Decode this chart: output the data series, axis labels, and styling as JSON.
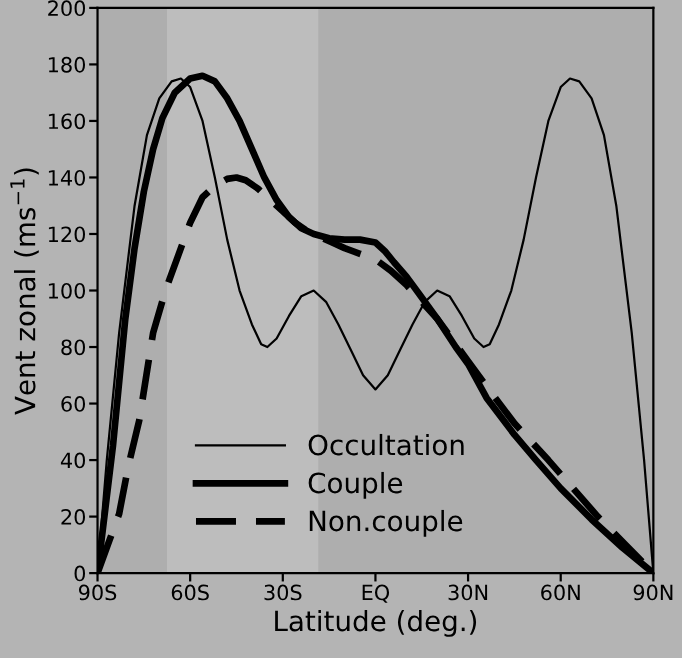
{
  "chart_data": {
    "type": "line",
    "xlabel": "Latitude (deg.)",
    "ylabel": "Vent zonal (ms$^{−1}$)",
    "xlim": [
      -90,
      90
    ],
    "xticks": [
      {
        "value": -90,
        "label": "90S"
      },
      {
        "value": -60,
        "label": "60S"
      },
      {
        "value": -30,
        "label": "30S"
      },
      {
        "value": 0,
        "label": "EQ"
      },
      {
        "value": 30,
        "label": "30N"
      },
      {
        "value": 60,
        "label": "60N"
      },
      {
        "value": 90,
        "label": "90N"
      }
    ],
    "ylim": [
      0,
      200
    ],
    "yticks": [
      0,
      20,
      40,
      60,
      80,
      100,
      120,
      140,
      160,
      180,
      200
    ],
    "grid": false,
    "legend": "bottom",
    "marker": "none",
    "bands": [
      {
        "axis": "x",
        "from": -67.5,
        "to": -18.5,
        "color": "#bdbdbd"
      }
    ],
    "series": [
      {
        "name": "Occultation",
        "color": "#000000",
        "line_style": "solid",
        "x": [
          -90,
          -87,
          -83,
          -78,
          -74,
          -70,
          -66,
          -63,
          -60,
          -56,
          -52,
          -48,
          -44,
          -40,
          -37,
          -35,
          -32,
          -28,
          -24,
          -20,
          -16,
          -12,
          -8,
          -4,
          0,
          4,
          8,
          12,
          16,
          20,
          24,
          28,
          32,
          35,
          37,
          40,
          44,
          48,
          52,
          56,
          60,
          63,
          66,
          70,
          74,
          78,
          83,
          87,
          90
        ],
        "values": [
          0,
          40,
          85,
          130,
          155,
          168,
          174,
          175,
          172,
          160,
          140,
          118,
          100,
          88,
          81,
          80,
          83,
          91,
          98,
          100,
          96,
          88,
          79,
          70,
          65,
          70,
          79,
          88,
          96,
          100,
          98,
          91,
          83,
          80,
          81,
          88,
          100,
          118,
          140,
          160,
          172,
          175,
          174,
          168,
          155,
          130,
          85,
          40,
          0
        ]
      },
      {
        "name": "Couple",
        "color": "#000000",
        "line_style": "solid",
        "x": [
          -90,
          -85,
          -81,
          -78,
          -75,
          -72,
          -69,
          -65,
          -60,
          -56,
          -52,
          -48,
          -44,
          -40,
          -36,
          -32,
          -28,
          -24,
          -20,
          -15,
          -10,
          -5,
          0,
          3,
          6,
          10,
          14,
          20,
          26,
          30,
          36,
          45,
          52,
          60,
          70,
          80,
          90
        ],
        "values": [
          0,
          45,
          90,
          115,
          135,
          150,
          161,
          170,
          175,
          176,
          174,
          168,
          160,
          150,
          140,
          132,
          126,
          122,
          120,
          118.5,
          118,
          118,
          117,
          114,
          110,
          105,
          99,
          90,
          80,
          74,
          62,
          49,
          40,
          30,
          19,
          9,
          0
        ]
      },
      {
        "name": "Non.couple",
        "color": "#000000",
        "line_style": "dashed",
        "x": [
          -90,
          -86,
          -83,
          -80,
          -76.5,
          -72,
          -68,
          -64,
          -60,
          -56,
          -52,
          -48,
          -45,
          -42,
          -38,
          -34,
          -30,
          -26,
          -22,
          -18,
          -14,
          -10,
          -5,
          0,
          5,
          10,
          15,
          20,
          26,
          30,
          36,
          45,
          56,
          64,
          72,
          81,
          90
        ],
        "values": [
          0,
          12,
          21,
          38,
          54,
          85,
          100,
          112,
          124,
          133,
          137,
          139.5,
          140,
          139,
          136,
          132,
          128,
          124,
          121,
          119,
          117,
          115,
          113,
          111,
          107,
          102,
          96,
          90,
          81,
          75,
          66,
          53,
          40,
          30,
          20,
          10,
          0
        ]
      }
    ]
  }
}
